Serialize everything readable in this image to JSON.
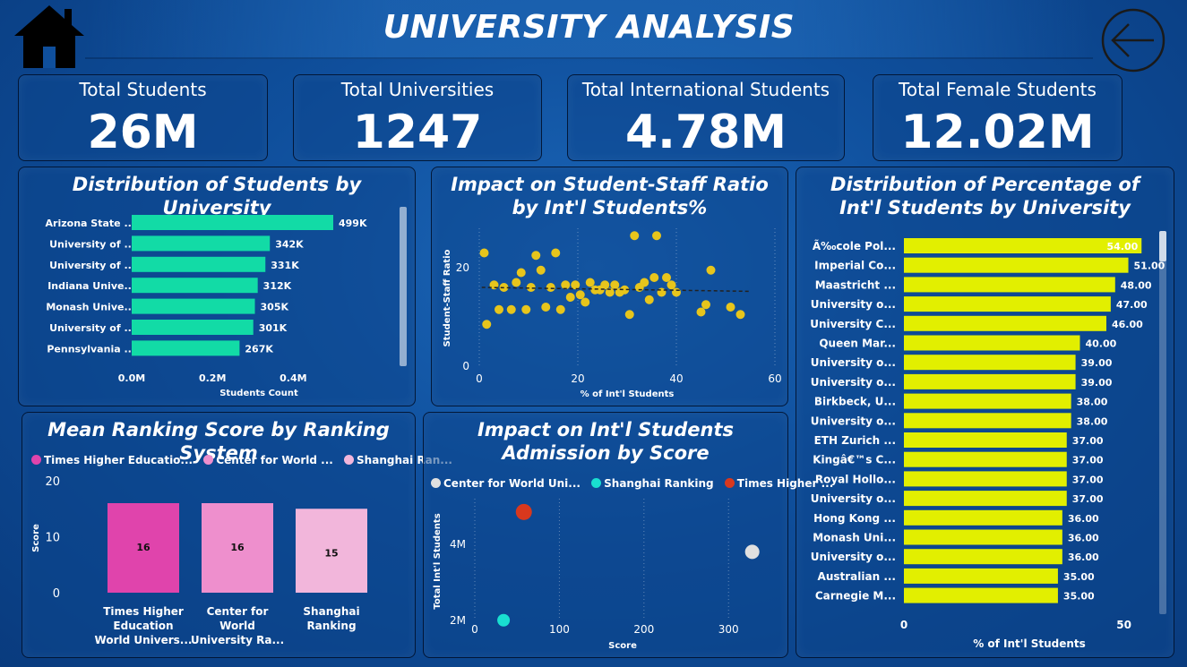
{
  "header": {
    "title": "UNIVERSITY ANALYSIS"
  },
  "nav": {
    "home_icon": "home-icon",
    "back_icon": "back-arrow-icon"
  },
  "kpis": [
    {
      "label": "Total Students",
      "value": "26M"
    },
    {
      "label": "Total Universities",
      "value": "1247"
    },
    {
      "label": "Total International Students",
      "value": "4.78M"
    },
    {
      "label": "Total Female Students",
      "value": "12.02M"
    }
  ],
  "colors": {
    "bar_green": "#12dba6",
    "bar_yellow": "#e2ef00",
    "scatter_yellow": "#e7c51c",
    "pink_dark": "#e044ac",
    "pink_mid": "#ee8fcd",
    "pink_light": "#f2b6db",
    "gray_dot": "#e0e0e0",
    "cyan_dot": "#19dfd0",
    "red_dot": "#d8381d"
  },
  "chart_data": [
    {
      "id": "students_by_university",
      "type": "bar",
      "orientation": "horizontal",
      "title": "Distribution of Students by University",
      "xlabel": "Students Count",
      "ylabel": "",
      "categories": [
        "Arizona State ...",
        "University of ...",
        "University of ...",
        "Indiana Unive...",
        "Monash Unive...",
        "University of ...",
        "Pennsylvania ..."
      ],
      "values": [
        499000,
        342000,
        331000,
        312000,
        305000,
        301000,
        267000
      ],
      "data_labels": [
        "499K",
        "342K",
        "331K",
        "312K",
        "305K",
        "301K",
        "267K"
      ],
      "xlim": [
        0,
        550000
      ],
      "x_ticks": [
        0,
        200000,
        400000
      ],
      "x_tick_labels": [
        "0.0M",
        "0.2M",
        "0.4M"
      ],
      "scrollbar": true
    },
    {
      "id": "staff_ratio_scatter",
      "type": "scatter",
      "title": "Impact on Student-Staff Ratio by Int'l Students%",
      "xlabel": "% of Int'l Students",
      "ylabel": "Student-Staff Ratio",
      "xlim": [
        0,
        60
      ],
      "ylim": [
        0,
        28
      ],
      "x_ticks": [
        0,
        20,
        40,
        60
      ],
      "y_ticks": [
        0,
        20
      ],
      "grid": "vertical dotted",
      "trendline": {
        "style": "dashed",
        "y_at_x0": 16,
        "y_at_x55": 15.2
      },
      "points": [
        [
          1,
          23
        ],
        [
          1.5,
          8.5
        ],
        [
          3,
          16.5
        ],
        [
          4,
          11.5
        ],
        [
          5,
          16
        ],
        [
          6.5,
          11.5
        ],
        [
          7.5,
          17
        ],
        [
          8.5,
          19
        ],
        [
          9.5,
          11.5
        ],
        [
          10.5,
          16
        ],
        [
          11.5,
          22.5
        ],
        [
          12.5,
          19.5
        ],
        [
          13.5,
          12
        ],
        [
          14.5,
          16
        ],
        [
          15.5,
          23
        ],
        [
          16.5,
          11.5
        ],
        [
          17.5,
          16.5
        ],
        [
          18.5,
          14
        ],
        [
          19.5,
          16.5
        ],
        [
          20.5,
          14.5
        ],
        [
          21.5,
          13
        ],
        [
          22.5,
          17
        ],
        [
          23.5,
          15.5
        ],
        [
          24.5,
          15.5
        ],
        [
          25.5,
          16.5
        ],
        [
          26.5,
          15
        ],
        [
          27.5,
          16.5
        ],
        [
          28.5,
          15
        ],
        [
          29.5,
          15.5
        ],
        [
          30.5,
          10.5
        ],
        [
          31.5,
          26.5
        ],
        [
          32.5,
          16
        ],
        [
          33.5,
          17
        ],
        [
          34.5,
          13.5
        ],
        [
          35.5,
          18
        ],
        [
          36,
          26.5
        ],
        [
          37,
          15
        ],
        [
          38,
          18
        ],
        [
          39,
          16.5
        ],
        [
          40,
          15
        ],
        [
          45,
          11
        ],
        [
          46,
          12.5
        ],
        [
          47,
          19.5
        ],
        [
          51,
          12
        ],
        [
          53,
          10.5
        ]
      ]
    },
    {
      "id": "intl_pct_by_university",
      "type": "bar",
      "orientation": "horizontal",
      "title": "Distribution of Percentage of Int'l Students by University",
      "xlabel": "% of Int'l Students",
      "ylabel": "",
      "categories": [
        "Ã‰cole Pol...",
        "Imperial Co...",
        "Maastricht ...",
        "University o...",
        "University C...",
        "Queen Mar...",
        "University o...",
        "University o...",
        "Birkbeck, U...",
        "University o...",
        "ETH Zurich ...",
        "Kingâ€™s C...",
        "Royal Hollo...",
        "University o...",
        "Hong Kong ...",
        "Monash Uni...",
        "University o...",
        "Australian ...",
        "Carnegie M..."
      ],
      "values": [
        54,
        51,
        48,
        47,
        46,
        40,
        39,
        39,
        38,
        38,
        37,
        37,
        37,
        37,
        36,
        36,
        36,
        35,
        35
      ],
      "data_labels": [
        "54.00",
        "51.00",
        "48.00",
        "47.00",
        "46.00",
        "40.00",
        "39.00",
        "39.00",
        "38.00",
        "38.00",
        "37.00",
        "37.00",
        "37.00",
        "37.00",
        "36.00",
        "36.00",
        "36.00",
        "35.00",
        "35.00"
      ],
      "xlim": [
        0,
        57
      ],
      "x_ticks": [
        0,
        50
      ],
      "scrollbar": true
    },
    {
      "id": "mean_ranking_score",
      "type": "bar",
      "title": "Mean Ranking Score by Ranking System",
      "xlabel": "",
      "ylabel": "Score",
      "categories": [
        "Times Higher Education World Univers...",
        "Center for World University Ra...",
        "Shanghai Ranking"
      ],
      "category_lines": [
        [
          "Times Higher",
          "Education",
          "World Univers..."
        ],
        [
          "Center for",
          "World",
          "University Ra..."
        ],
        [
          "Shanghai",
          "Ranking"
        ]
      ],
      "values": [
        16,
        16,
        15
      ],
      "data_labels": [
        "16",
        "16",
        "15"
      ],
      "ylim": [
        0,
        20
      ],
      "y_ticks": [
        0,
        10,
        20
      ],
      "legend": {
        "placement": "top-left",
        "entries": [
          "Times Higher Educatio...",
          "Center for World ...",
          "Shanghai Ran..."
        ]
      }
    },
    {
      "id": "intl_admission_by_score",
      "type": "scatter",
      "title": "Impact on Int'l Students Admission by Score",
      "xlabel": "Score",
      "ylabel": "Total Int'l Students",
      "xlim": [
        0,
        340
      ],
      "ylim": [
        1.9,
        5.2
      ],
      "x_ticks": [
        0,
        100,
        200,
        300
      ],
      "y_ticks": [
        2,
        4
      ],
      "y_tick_labels": [
        "2M",
        "4M"
      ],
      "grid": "vertical dotted",
      "legend": {
        "placement": "top-left",
        "entries": [
          "Center for World Uni...",
          "Shanghai Ranking",
          "Times Higher ..."
        ]
      },
      "series": [
        {
          "name": "Center for World Uni...",
          "points": [
            [
              328,
              3.8
            ]
          ]
        },
        {
          "name": "Shanghai Ranking",
          "points": [
            [
              34,
              2.0
            ]
          ]
        },
        {
          "name": "Times Higher ...",
          "points": [
            [
              58,
              4.85
            ]
          ]
        }
      ]
    }
  ]
}
